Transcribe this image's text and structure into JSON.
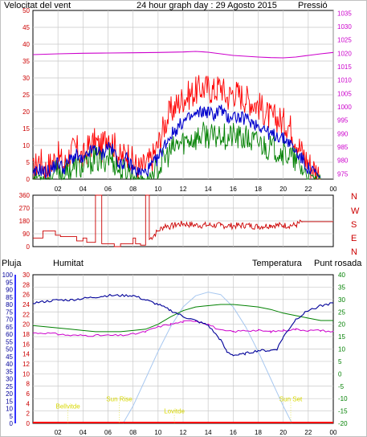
{
  "header": {
    "left_title": "Velocitat del vent",
    "center_title": "24 hour graph day : 29 Agosto 2015",
    "right_title": "Pressió"
  },
  "colors": {
    "wind_gust": "#ff0000",
    "wind_avg": "#0000cc",
    "wind_min": "#008000",
    "pressure": "#cc00cc",
    "direction": "#cc0000",
    "humidity": "#000099",
    "temperature": "#008000",
    "dewpoint": "#cc00cc",
    "rain": "#ff0000",
    "sun": "#a8c8f0",
    "annotation": "#d8d800",
    "axis_left": "#000099",
    "axis_right_pressure": "#cc00cc",
    "axis_right_temp": "#008000"
  },
  "chart_data": [
    {
      "type": "line",
      "id": "wind_pressure",
      "x_ticks": [
        "02",
        "04",
        "06",
        "08",
        "10",
        "12",
        "14",
        "16",
        "18",
        "20",
        "22",
        "00"
      ],
      "x_range_hours": [
        0,
        24
      ],
      "y_left_ticks": [
        0,
        5,
        10,
        15,
        20,
        25,
        30,
        35,
        40,
        45,
        50
      ],
      "y_left_range": [
        0,
        50
      ],
      "y_right_ticks": [
        975,
        980,
        985,
        990,
        995,
        1000,
        1005,
        1010,
        1015,
        1020,
        1025,
        1030,
        1035
      ],
      "y_right_range": [
        973,
        1036
      ],
      "series": [
        {
          "key": "gust",
          "x": [
            0,
            0.5,
            1,
            1.5,
            2,
            2.5,
            3,
            3.5,
            4,
            4.5,
            5,
            5.5,
            6,
            6.5,
            7,
            7.5,
            8,
            8.5,
            9,
            9.5,
            10,
            10.5,
            11,
            11.5,
            12,
            12.5,
            13,
            13.5,
            14,
            14.5,
            15,
            15.5,
            16,
            16.5,
            17,
            17.5,
            18,
            18.5,
            19,
            19.5,
            20,
            20.5,
            21,
            21.5,
            22,
            22.5,
            23
          ],
          "values": [
            2,
            6,
            3,
            5,
            7,
            4,
            8,
            9,
            6,
            10,
            11,
            9,
            14,
            10,
            6,
            8,
            5,
            3,
            4,
            6,
            10,
            16,
            20,
            22,
            24,
            25,
            26,
            27,
            27,
            26,
            28,
            24,
            26,
            25,
            24,
            23,
            22,
            20,
            18,
            18,
            17,
            16,
            12,
            8,
            5,
            3,
            1
          ]
        },
        {
          "key": "avg",
          "x": [
            0,
            0.5,
            1,
            1.5,
            2,
            2.5,
            3,
            3.5,
            4,
            4.5,
            5,
            5.5,
            6,
            6.5,
            7,
            7.5,
            8,
            8.5,
            9,
            9.5,
            10,
            10.5,
            11,
            11.5,
            12,
            12.5,
            13,
            13.5,
            14,
            14.5,
            15,
            15.5,
            16,
            16.5,
            17,
            17.5,
            18,
            18.5,
            19,
            19.5,
            20,
            20.5,
            21,
            21.5,
            22,
            22.5,
            23
          ],
          "values": [
            1,
            3,
            2,
            3,
            5,
            3,
            6,
            7,
            5,
            8,
            9,
            7,
            10,
            8,
            4,
            6,
            3,
            2,
            2,
            4,
            6,
            10,
            13,
            15,
            17,
            18,
            19,
            20,
            20,
            19,
            21,
            18,
            19,
            18,
            18,
            17,
            16,
            15,
            13,
            13,
            12,
            11,
            8,
            6,
            3,
            2,
            0
          ]
        },
        {
          "key": "min",
          "x": [
            0,
            0.5,
            1,
            1.5,
            2,
            2.5,
            3,
            3.5,
            4,
            4.5,
            5,
            5.5,
            6,
            6.5,
            7,
            7.5,
            8,
            8.5,
            9,
            9.5,
            10,
            10.5,
            11,
            11.5,
            12,
            12.5,
            13,
            13.5,
            14,
            14.5,
            15,
            15.5,
            16,
            16.5,
            17,
            17.5,
            18,
            18.5,
            19,
            19.5,
            20,
            20.5,
            21,
            21.5,
            22,
            22.5,
            23
          ],
          "values": [
            0,
            1,
            0,
            1,
            2,
            1,
            3,
            4,
            3,
            5,
            6,
            5,
            7,
            5,
            2,
            3,
            1,
            0,
            0,
            1,
            3,
            6,
            8,
            10,
            11,
            12,
            12,
            13,
            13,
            12,
            14,
            12,
            13,
            12,
            12,
            11,
            11,
            10,
            9,
            9,
            8,
            7,
            5,
            3,
            1,
            0,
            0
          ]
        },
        {
          "key": "pressure",
          "axis": "right",
          "x": [
            0,
            2,
            4,
            6,
            8,
            10,
            12,
            13,
            14,
            16,
            18,
            19,
            20,
            21,
            22,
            23,
            24
          ],
          "values": [
            1019.5,
            1019.8,
            1020,
            1020.1,
            1020.2,
            1020.3,
            1020.5,
            1020.7,
            1020.4,
            1019.2,
            1018.6,
            1018.4,
            1018.3,
            1018.6,
            1019.2,
            1019.8,
            1020.3
          ]
        }
      ]
    },
    {
      "type": "line",
      "id": "direction",
      "x_range_hours": [
        0,
        24
      ],
      "y_left_ticks": [
        0,
        90,
        180,
        270,
        360
      ],
      "y_left_range": [
        0,
        360
      ],
      "y_right_labels": [
        "N",
        "W",
        "S",
        "E",
        "N"
      ],
      "series": [
        {
          "key": "direction",
          "x": [
            0,
            0.8,
            0.8,
            1.8,
            1.8,
            2.2,
            2.2,
            3.5,
            3.5,
            4,
            4,
            4.3,
            4.3,
            5,
            5,
            5,
            5.5,
            5.5,
            5.6,
            6.5,
            6.5,
            7,
            7,
            8,
            8,
            8.2,
            8.2,
            8.6,
            8.6,
            9,
            9,
            9.3,
            9.3,
            10,
            10.3,
            10.6,
            11,
            11.5,
            12,
            13,
            14,
            15,
            16,
            17,
            18,
            19,
            20,
            21,
            21.5,
            22,
            22.5,
            23,
            24
          ],
          "values": [
            60,
            60,
            110,
            110,
            80,
            80,
            70,
            70,
            40,
            40,
            60,
            60,
            30,
            30,
            90,
            360,
            360,
            20,
            20,
            20,
            0,
            0,
            20,
            20,
            60,
            60,
            20,
            20,
            10,
            10,
            360,
            360,
            50,
            110,
            130,
            150,
            140,
            155,
            160,
            150,
            150,
            148,
            145,
            150,
            140,
            150,
            148,
            150,
            175,
            175,
            175,
            175,
            175
          ]
        }
      ]
    },
    {
      "type": "line",
      "id": "humidity_temp",
      "x_ticks": [
        "02",
        "04",
        "06",
        "08",
        "10",
        "12",
        "14",
        "16",
        "18",
        "20",
        "22",
        "00"
      ],
      "x_range_hours": [
        0,
        24
      ],
      "rain_ticks": [
        0,
        2,
        4,
        6,
        8,
        10,
        12,
        14,
        16,
        18,
        20,
        22,
        24,
        26,
        28,
        30
      ],
      "humidity_ticks": [
        0,
        5,
        10,
        15,
        20,
        25,
        30,
        35,
        40,
        45,
        50,
        55,
        60,
        65,
        70,
        75,
        80,
        85,
        90,
        95,
        100
      ],
      "temp_ticks": [
        -20,
        -15,
        -10,
        -5,
        0,
        5,
        10,
        15,
        20,
        25,
        30,
        35,
        40
      ],
      "temp_range": [
        -20,
        40
      ],
      "humidity_range": [
        0,
        100
      ],
      "rain_range": [
        0,
        30
      ],
      "series": [
        {
          "key": "humidity",
          "x": [
            0,
            1,
            2,
            3,
            4,
            5,
            6,
            7,
            8,
            9,
            10,
            11,
            12,
            13,
            14,
            15,
            15.5,
            16,
            16.5,
            17,
            18,
            19,
            19.5,
            20,
            21,
            22,
            23,
            24
          ],
          "values": [
            81,
            82,
            83,
            83,
            84,
            85,
            86,
            86,
            86,
            83,
            80,
            76,
            72,
            69,
            66,
            56,
            48,
            46,
            46,
            47,
            49,
            49,
            50,
            58,
            70,
            76,
            79,
            81
          ]
        },
        {
          "key": "temperature",
          "x": [
            0,
            1,
            2,
            3,
            4,
            5,
            6,
            7,
            8,
            9,
            10,
            11,
            12,
            13,
            14,
            15,
            16,
            17,
            18,
            19,
            20,
            21,
            22,
            23,
            24
          ],
          "values": [
            19.5,
            19,
            18.5,
            18,
            17.5,
            17,
            17,
            17,
            17.5,
            18,
            20,
            23,
            25.5,
            27,
            27.5,
            28,
            28,
            27.5,
            27,
            26,
            24.5,
            23.5,
            22.5,
            21.5,
            21.5
          ]
        },
        {
          "key": "dewpoint",
          "x": [
            0,
            1,
            2,
            3,
            4,
            5,
            6,
            7,
            8,
            9,
            10,
            11,
            12,
            13,
            14,
            15,
            16,
            17,
            18,
            19,
            20,
            21,
            22,
            23,
            24
          ],
          "values": [
            16.5,
            16.5,
            16,
            15.5,
            15.5,
            15.5,
            15.5,
            15.5,
            16,
            17,
            19,
            20,
            21,
            21.5,
            20,
            17.5,
            17,
            17.5,
            17.5,
            17,
            17.5,
            18,
            17.5,
            17.5,
            17
          ]
        },
        {
          "key": "sun",
          "x": [
            7.2,
            8,
            9,
            10,
            11,
            12,
            13,
            14,
            15,
            16,
            17,
            18,
            19,
            20,
            20.7
          ],
          "values": [
            -20,
            -13,
            -2,
            9,
            19,
            27,
            31.5,
            33,
            32,
            27,
            19,
            9,
            -2,
            -13,
            -20
          ]
        },
        {
          "key": "rain",
          "x": [
            0,
            24
          ],
          "values": [
            0,
            0
          ]
        }
      ],
      "annotations": [
        {
          "label": "Bellvitde",
          "hour": 2.8,
          "temp": -14
        },
        {
          "label": "Sun Rise",
          "hour": 6.9,
          "temp": -11
        },
        {
          "label": "Lovitde",
          "hour": 11.3,
          "temp": -16
        },
        {
          "label": "Sun Set",
          "hour": 20.6,
          "temp": -11
        }
      ]
    }
  ],
  "legend": {
    "rain": "Pluja",
    "humidity": "Humitat",
    "temperature": "Temperatura",
    "dewpoint": "Punt rosada"
  }
}
